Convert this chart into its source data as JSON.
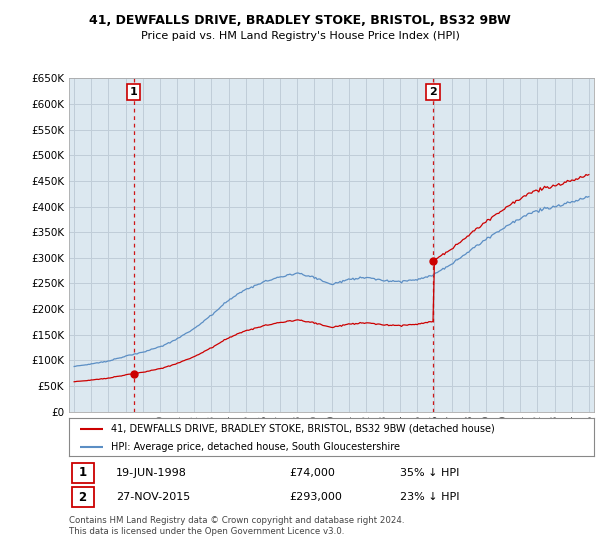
{
  "title1": "41, DEWFALLS DRIVE, BRADLEY STOKE, BRISTOL, BS32 9BW",
  "title2": "Price paid vs. HM Land Registry's House Price Index (HPI)",
  "legend_line1": "41, DEWFALLS DRIVE, BRADLEY STOKE, BRISTOL, BS32 9BW (detached house)",
  "legend_line2": "HPI: Average price, detached house, South Gloucestershire",
  "annotation1_label": "1",
  "annotation1_date": "19-JUN-1998",
  "annotation1_price": "£74,000",
  "annotation1_pct": "35% ↓ HPI",
  "annotation2_label": "2",
  "annotation2_date": "27-NOV-2015",
  "annotation2_price": "£293,000",
  "annotation2_pct": "23% ↓ HPI",
  "footnote": "Contains HM Land Registry data © Crown copyright and database right 2024.\nThis data is licensed under the Open Government Licence v3.0.",
  "hpi_color": "#5b8ec4",
  "price_color": "#cc0000",
  "annotation_color": "#cc0000",
  "chart_bg_color": "#dce8f0",
  "background_color": "#ffffff",
  "grid_color": "#c0cdd8",
  "ylim": [
    0,
    650000
  ],
  "yticks": [
    0,
    50000,
    100000,
    150000,
    200000,
    250000,
    300000,
    350000,
    400000,
    450000,
    500000,
    550000,
    600000,
    650000
  ],
  "sale1_x": 1998.47,
  "sale1_y": 74000,
  "sale2_x": 2015.92,
  "sale2_y": 293000,
  "vline1_x": 1998.47,
  "vline2_x": 2015.92,
  "xmin": 1995.0,
  "xmax": 2025.3
}
